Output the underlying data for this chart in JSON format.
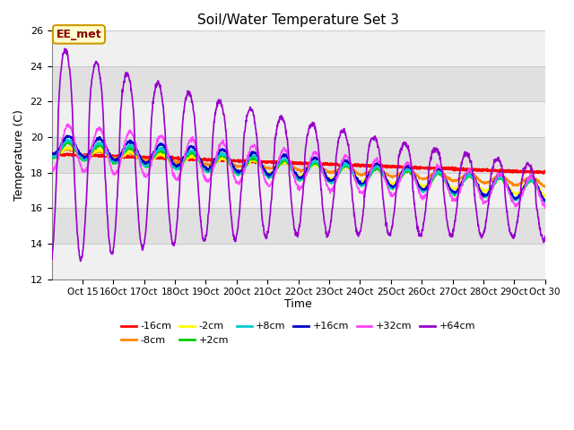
{
  "title": "Soil/Water Temperature Set 3",
  "xlabel": "Time",
  "ylabel": "Temperature (C)",
  "ylim": [
    12,
    26
  ],
  "yticks": [
    12,
    14,
    16,
    18,
    20,
    22,
    24,
    26
  ],
  "annotation_text": "EE_met",
  "annotation_bg": "#ffffcc",
  "annotation_border": "#cc9900",
  "series": [
    {
      "label": "-16cm",
      "color": "#ff0000"
    },
    {
      "label": "-8cm",
      "color": "#ff8800"
    },
    {
      "label": "-2cm",
      "color": "#ffff00"
    },
    {
      "label": "+2cm",
      "color": "#00cc00"
    },
    {
      "label": "+8cm",
      "color": "#00cccc"
    },
    {
      "label": "+16cm",
      "color": "#0000cc"
    },
    {
      "label": "+32cm",
      "color": "#ff44ff"
    },
    {
      "label": "+64cm",
      "color": "#9900cc"
    }
  ],
  "bg_color": "#ffffff",
  "plot_bg_color": "#e8e8e8",
  "band_light": "#f0f0f0",
  "band_dark": "#e0e0e0"
}
